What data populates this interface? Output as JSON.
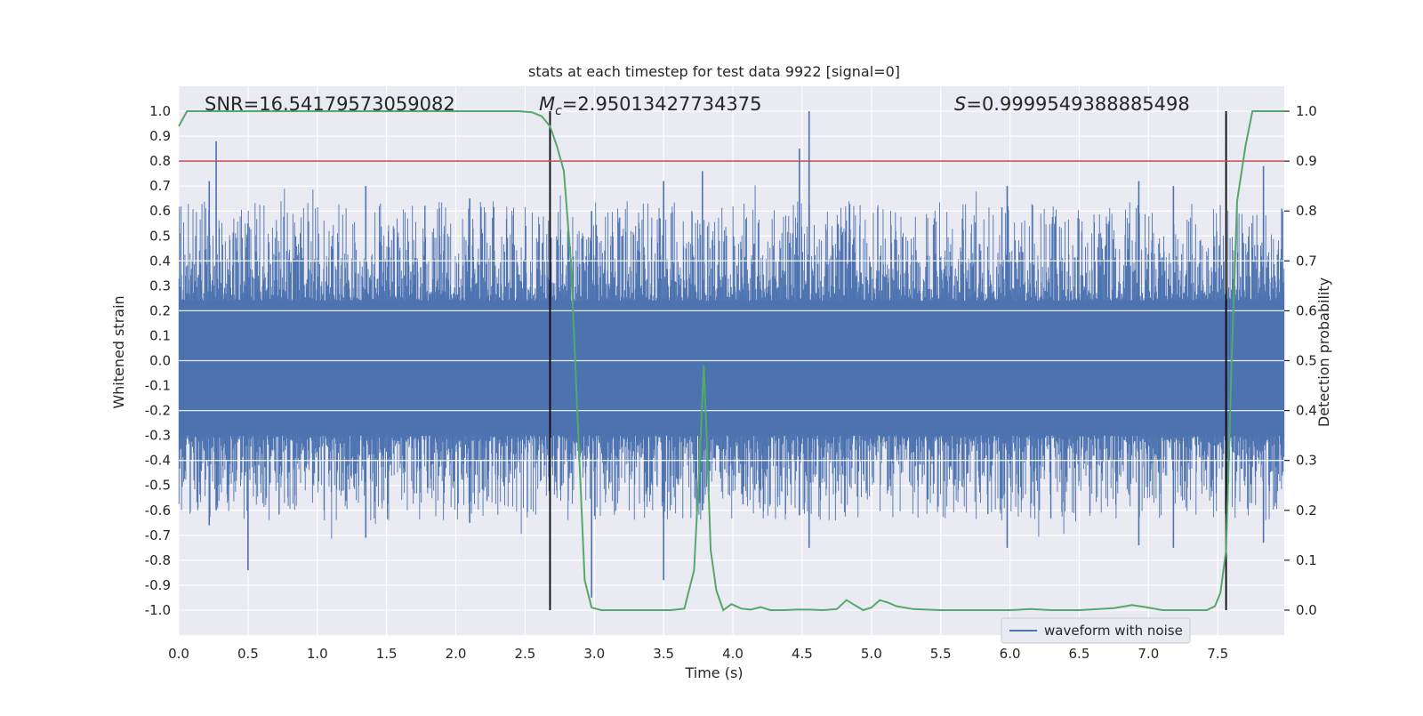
{
  "chart_data": {
    "type": "line",
    "title": "stats at each timestep for test data 9922 [signal=0]",
    "xlabel": "Time (s)",
    "ylabel": "Whitened strain",
    "ylabel_right": "Detection probability",
    "xlim": [
      0.0,
      7.98
    ],
    "ylim": [
      -1.1,
      1.1
    ],
    "ylim_right": [
      -0.05,
      1.05
    ],
    "x_ticks": [
      "0.0",
      "0.5",
      "1.0",
      "1.5",
      "2.0",
      "2.5",
      "3.0",
      "3.5",
      "4.0",
      "4.5",
      "5.0",
      "5.5",
      "6.0",
      "6.5",
      "7.0",
      "7.5"
    ],
    "y_ticks": [
      "1.0",
      "0.9",
      "0.8",
      "0.7",
      "0.6",
      "0.5",
      "0.4",
      "0.3",
      "0.2",
      "0.1",
      "0.0",
      "-0.1",
      "-0.2",
      "-0.3",
      "-0.4",
      "-0.5",
      "-0.6",
      "-0.7",
      "-0.8",
      "-0.9",
      "-1.0"
    ],
    "y_ticks_right": [
      "1.0",
      "0.9",
      "0.8",
      "0.7",
      "0.6",
      "0.5",
      "0.4",
      "0.3",
      "0.2",
      "0.1",
      "0.0"
    ],
    "annotations": {
      "snr": "SNR=16.54179573059082",
      "mc_symbol": "M",
      "mc_sub": "c",
      "mc_value": "=2.95013427734375",
      "s_symbol": "S",
      "s_value": "=0.9999549388885498"
    },
    "threshold_right": 0.9,
    "event_markers_x": [
      2.68,
      7.56
    ],
    "legend": {
      "position": "bottom-right",
      "entries": [
        "waveform with noise"
      ]
    },
    "series": [
      {
        "name": "waveform with noise",
        "axis": "left",
        "style": "filled-noise",
        "envelope_peaks": [
          {
            "x": 0.27,
            "top": 0.88,
            "bottom": -0.6
          },
          {
            "x": 0.5,
            "top": 0.55,
            "bottom": -0.84
          },
          {
            "x": 0.22,
            "top": 0.72,
            "bottom": -0.66
          },
          {
            "x": 1.35,
            "top": 0.7,
            "bottom": -0.71
          },
          {
            "x": 2.1,
            "top": 0.65,
            "bottom": -0.65
          },
          {
            "x": 2.98,
            "top": 0.6,
            "bottom": -0.95
          },
          {
            "x": 3.5,
            "top": 0.72,
            "bottom": -0.88
          },
          {
            "x": 3.78,
            "top": 0.76,
            "bottom": -0.6
          },
          {
            "x": 4.48,
            "top": 0.85,
            "bottom": -0.62
          },
          {
            "x": 4.55,
            "top": 1.0,
            "bottom": -0.75
          },
          {
            "x": 5.98,
            "top": 0.7,
            "bottom": -0.75
          },
          {
            "x": 6.93,
            "top": 0.72,
            "bottom": -0.74
          },
          {
            "x": 7.18,
            "top": 0.7,
            "bottom": -0.75
          },
          {
            "x": 7.83,
            "top": 0.78,
            "bottom": -0.73
          }
        ]
      },
      {
        "name": "Detection probability",
        "axis": "right",
        "color": "#55a868",
        "x": [
          0.0,
          0.06,
          0.5,
          1.0,
          1.5,
          2.0,
          2.45,
          2.55,
          2.62,
          2.68,
          2.73,
          2.78,
          2.83,
          2.88,
          2.93,
          2.98,
          3.05,
          3.2,
          3.4,
          3.55,
          3.65,
          3.72,
          3.76,
          3.79,
          3.81,
          3.84,
          3.88,
          3.93,
          3.99,
          4.06,
          4.13,
          4.2,
          4.27,
          4.37,
          4.45,
          4.55,
          4.65,
          4.75,
          4.82,
          4.88,
          4.94,
          5.0,
          5.06,
          5.12,
          5.18,
          5.3,
          5.5,
          5.8,
          6.0,
          6.15,
          6.3,
          6.5,
          6.75,
          6.88,
          6.98,
          7.1,
          7.3,
          7.42,
          7.48,
          7.52,
          7.56,
          7.6,
          7.64,
          7.7,
          7.75,
          7.8,
          7.98
        ],
        "y": [
          0.97,
          1.0,
          1.0,
          1.0,
          1.0,
          1.0,
          1.0,
          0.998,
          0.99,
          0.97,
          0.93,
          0.88,
          0.7,
          0.38,
          0.06,
          0.005,
          0.0,
          0.0,
          0.0,
          0.0,
          0.003,
          0.08,
          0.3,
          0.49,
          0.35,
          0.12,
          0.04,
          0.0,
          0.012,
          0.003,
          0.001,
          0.006,
          0.0,
          0.0,
          0.001,
          0.001,
          0.0,
          0.002,
          0.02,
          0.01,
          0.0,
          0.005,
          0.02,
          0.015,
          0.008,
          0.002,
          0.0,
          0.0,
          0.0,
          0.002,
          0.0,
          0.0,
          0.004,
          0.01,
          0.006,
          0.0,
          0.0,
          0.0,
          0.008,
          0.035,
          0.12,
          0.5,
          0.82,
          0.93,
          1.0,
          1.0,
          1.0
        ]
      }
    ],
    "colors": {
      "background": "#eaeaf2",
      "grid": "#ffffff",
      "waveform": "#4c72b0",
      "probability": "#55a868",
      "threshold": "#c44e52",
      "markers": "#000000"
    }
  }
}
